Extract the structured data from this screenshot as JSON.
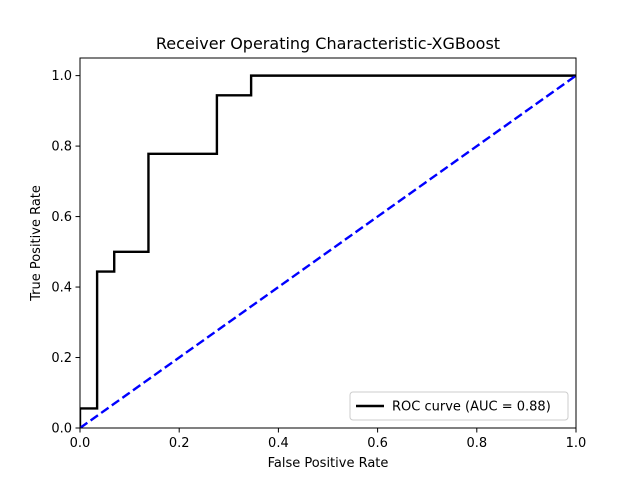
{
  "chart_data": {
    "type": "line",
    "title": "Receiver Operating Characteristic-XGBoost",
    "xlabel": "False Positive Rate",
    "ylabel": "True Positive Rate",
    "xlim": [
      0.0,
      1.0
    ],
    "ylim": [
      0.0,
      1.05
    ],
    "xticks": [
      0.0,
      0.2,
      0.4,
      0.6,
      0.8,
      1.0
    ],
    "yticks": [
      0.0,
      0.2,
      0.4,
      0.6,
      0.8,
      1.0
    ],
    "xtick_labels": [
      "0.0",
      "0.2",
      "0.4",
      "0.6",
      "0.8",
      "1.0"
    ],
    "ytick_labels": [
      "0.0",
      "0.2",
      "0.4",
      "0.6",
      "0.8",
      "1.0"
    ],
    "grid": false,
    "legend_position": "lower-right",
    "series": [
      {
        "name": "ROC curve (AUC = 0.88)",
        "color": "#000000",
        "style": "solid",
        "x": [
          0.0,
          0.0,
          0.0345,
          0.0345,
          0.069,
          0.069,
          0.138,
          0.138,
          0.276,
          0.276,
          0.345,
          0.345,
          1.0
        ],
        "y": [
          0.0,
          0.0556,
          0.0556,
          0.444,
          0.444,
          0.5,
          0.5,
          0.778,
          0.778,
          0.944,
          0.944,
          1.0,
          1.0
        ]
      },
      {
        "color": "#0000ff",
        "style": "dashed",
        "x": [
          0.0,
          1.0
        ],
        "y": [
          0.0,
          1.0
        ]
      }
    ]
  }
}
